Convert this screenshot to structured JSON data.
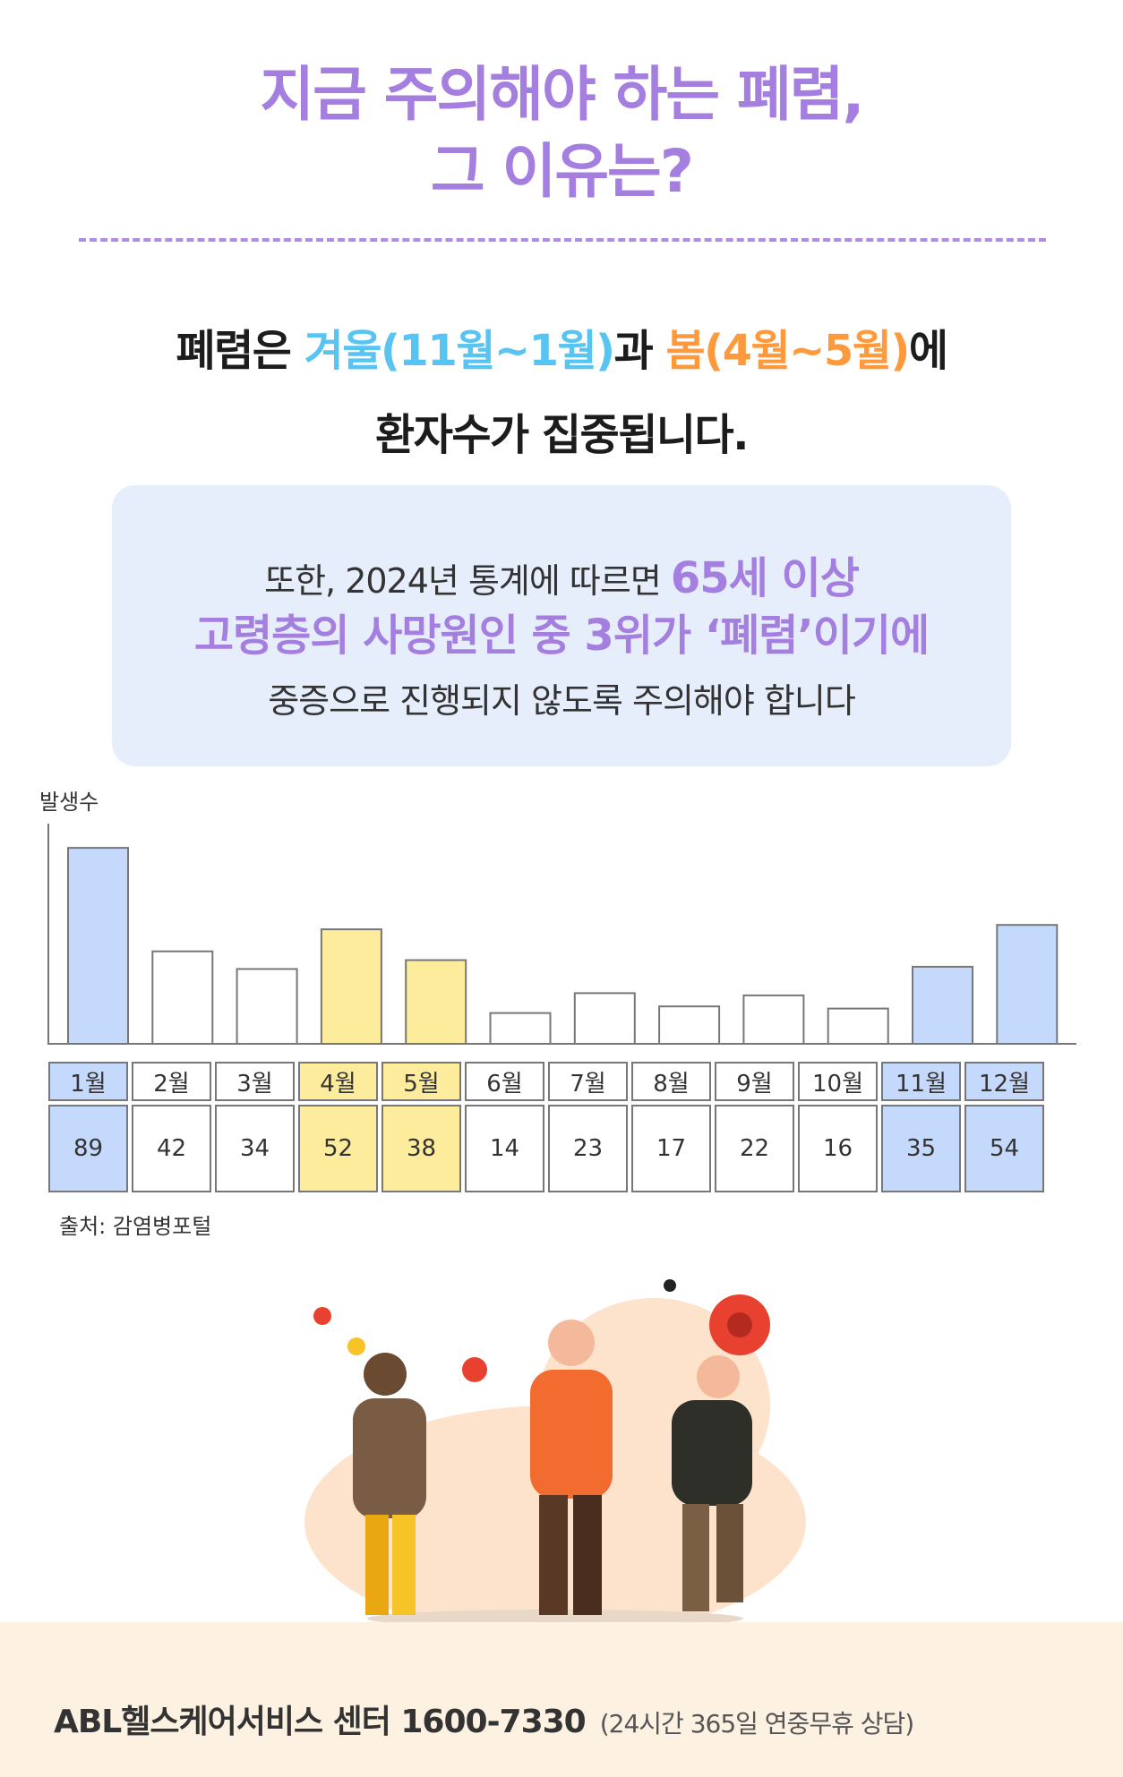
{
  "title": {
    "line1": "지금 주의해야 하는 폐렴,",
    "line2": "그 이유는?"
  },
  "lead": {
    "prefix": "폐렴은 ",
    "winter": "겨울(11월~1월)",
    "middle": "과 ",
    "spring": "봄(4월~5월)",
    "suffix": "에",
    "line2": "환자수가 집중됩니다."
  },
  "note": {
    "line1_text": "또한, 2024년 통계에 따르면 ",
    "line1_highlight": "65세 이상",
    "line2": "고령층의 사망원인 중 3위가 ‘폐렴’이기에",
    "line3": "중증으로 진행되지 않도록 주의해야 합니다"
  },
  "chart_data": {
    "type": "bar",
    "ylabel": "발생수",
    "categories": [
      "1월",
      "2월",
      "3월",
      "4월",
      "5월",
      "6월",
      "7월",
      "8월",
      "9월",
      "10월",
      "11월",
      "12월"
    ],
    "values": [
      89,
      42,
      34,
      52,
      38,
      14,
      23,
      17,
      22,
      16,
      35,
      54
    ],
    "season": [
      "winter",
      "none",
      "none",
      "spring",
      "spring",
      "none",
      "none",
      "none",
      "none",
      "none",
      "winter",
      "winter"
    ],
    "colors": {
      "winter": "#c4d9fb",
      "spring": "#fdec9c",
      "none": "#ffffff",
      "border": "#777777"
    },
    "ylim": [
      0,
      100
    ],
    "grid": false,
    "source": "출처: 감염병포털"
  },
  "illustration": {
    "icon": "sick-people-virus-illustration"
  },
  "footer": {
    "main": "ABL헬스케어서비스 센터 1600-7330",
    "note": "(24시간 365일 연중무휴 상담)"
  }
}
